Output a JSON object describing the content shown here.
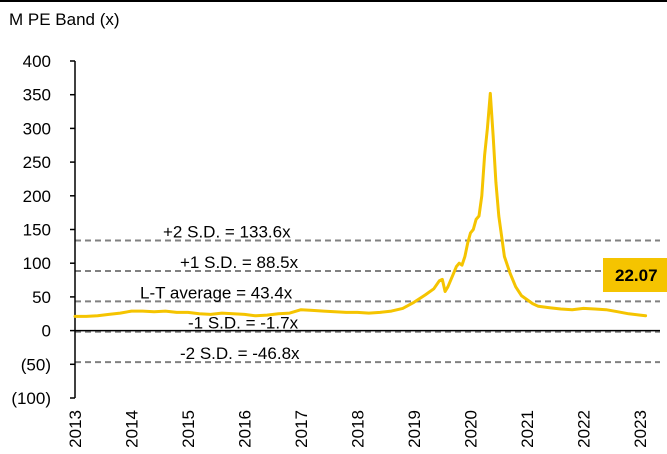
{
  "chart_data": {
    "type": "line",
    "title": "M PE Band (x)",
    "ylim": [
      -100,
      400
    ],
    "yticks": [
      {
        "value": 400,
        "label": "400"
      },
      {
        "value": 350,
        "label": "350"
      },
      {
        "value": 300,
        "label": "300"
      },
      {
        "value": 250,
        "label": "250"
      },
      {
        "value": 200,
        "label": "200"
      },
      {
        "value": 150,
        "label": "150"
      },
      {
        "value": 100,
        "label": "100"
      },
      {
        "value": 50,
        "label": "50"
      },
      {
        "value": 0,
        "label": "0"
      },
      {
        "value": -50,
        "label": "(50)"
      },
      {
        "value": -100,
        "label": "(100)"
      }
    ],
    "xlim": [
      2013,
      2023.3
    ],
    "xticks": [
      "2013",
      "2014",
      "2015",
      "2016",
      "2017",
      "2018",
      "2019",
      "2020",
      "2021",
      "2022",
      "2023"
    ],
    "bands": [
      {
        "label": "+2 S.D. = 133.6x",
        "value": 133.6
      },
      {
        "label": "+1 S.D. = 88.5x",
        "value": 88.5
      },
      {
        "label": "L-T average = 43.4x",
        "value": 43.4
      },
      {
        "label": "-1 S.D. = -1.7x",
        "value": -1.7
      },
      {
        "label": "-2 S.D. = -46.8x",
        "value": -46.8
      }
    ],
    "latest_label": "22.07",
    "series": [
      {
        "color": "#f5c400",
        "points": [
          [
            2013.0,
            21
          ],
          [
            2013.2,
            21
          ],
          [
            2013.4,
            22
          ],
          [
            2013.6,
            24
          ],
          [
            2013.8,
            26
          ],
          [
            2014.0,
            29
          ],
          [
            2014.2,
            29
          ],
          [
            2014.4,
            28
          ],
          [
            2014.6,
            29
          ],
          [
            2014.8,
            27
          ],
          [
            2015.0,
            27
          ],
          [
            2015.2,
            25
          ],
          [
            2015.4,
            24
          ],
          [
            2015.6,
            26
          ],
          [
            2015.8,
            25
          ],
          [
            2016.0,
            24
          ],
          [
            2016.2,
            22
          ],
          [
            2016.4,
            23
          ],
          [
            2016.6,
            25
          ],
          [
            2016.8,
            26
          ],
          [
            2017.0,
            31
          ],
          [
            2017.2,
            30
          ],
          [
            2017.4,
            29
          ],
          [
            2017.6,
            28
          ],
          [
            2017.8,
            27
          ],
          [
            2018.0,
            27
          ],
          [
            2018.2,
            26
          ],
          [
            2018.4,
            27
          ],
          [
            2018.6,
            29
          ],
          [
            2018.8,
            33
          ],
          [
            2019.0,
            42
          ],
          [
            2019.2,
            53
          ],
          [
            2019.35,
            62
          ],
          [
            2019.45,
            74
          ],
          [
            2019.5,
            76
          ],
          [
            2019.55,
            58
          ],
          [
            2019.6,
            65
          ],
          [
            2019.7,
            85
          ],
          [
            2019.75,
            95
          ],
          [
            2019.8,
            100
          ],
          [
            2019.85,
            97
          ],
          [
            2019.9,
            110
          ],
          [
            2019.95,
            130
          ],
          [
            2020.0,
            145
          ],
          [
            2020.05,
            150
          ],
          [
            2020.1,
            165
          ],
          [
            2020.15,
            170
          ],
          [
            2020.2,
            200
          ],
          [
            2020.25,
            260
          ],
          [
            2020.3,
            300
          ],
          [
            2020.35,
            352
          ],
          [
            2020.4,
            290
          ],
          [
            2020.45,
            220
          ],
          [
            2020.5,
            170
          ],
          [
            2020.55,
            140
          ],
          [
            2020.6,
            110
          ],
          [
            2020.7,
            85
          ],
          [
            2020.8,
            65
          ],
          [
            2020.9,
            52
          ],
          [
            2021.0,
            46
          ],
          [
            2021.1,
            40
          ],
          [
            2021.2,
            36
          ],
          [
            2021.4,
            34
          ],
          [
            2021.6,
            32
          ],
          [
            2021.8,
            31
          ],
          [
            2022.0,
            33
          ],
          [
            2022.2,
            32
          ],
          [
            2022.4,
            31
          ],
          [
            2022.6,
            28
          ],
          [
            2022.8,
            25
          ],
          [
            2023.0,
            23
          ],
          [
            2023.1,
            22.07
          ]
        ]
      }
    ]
  },
  "colors": {
    "line": "#f5c400",
    "label_box": "#f5c400",
    "band_line": "#808080",
    "axis": "#000000"
  }
}
